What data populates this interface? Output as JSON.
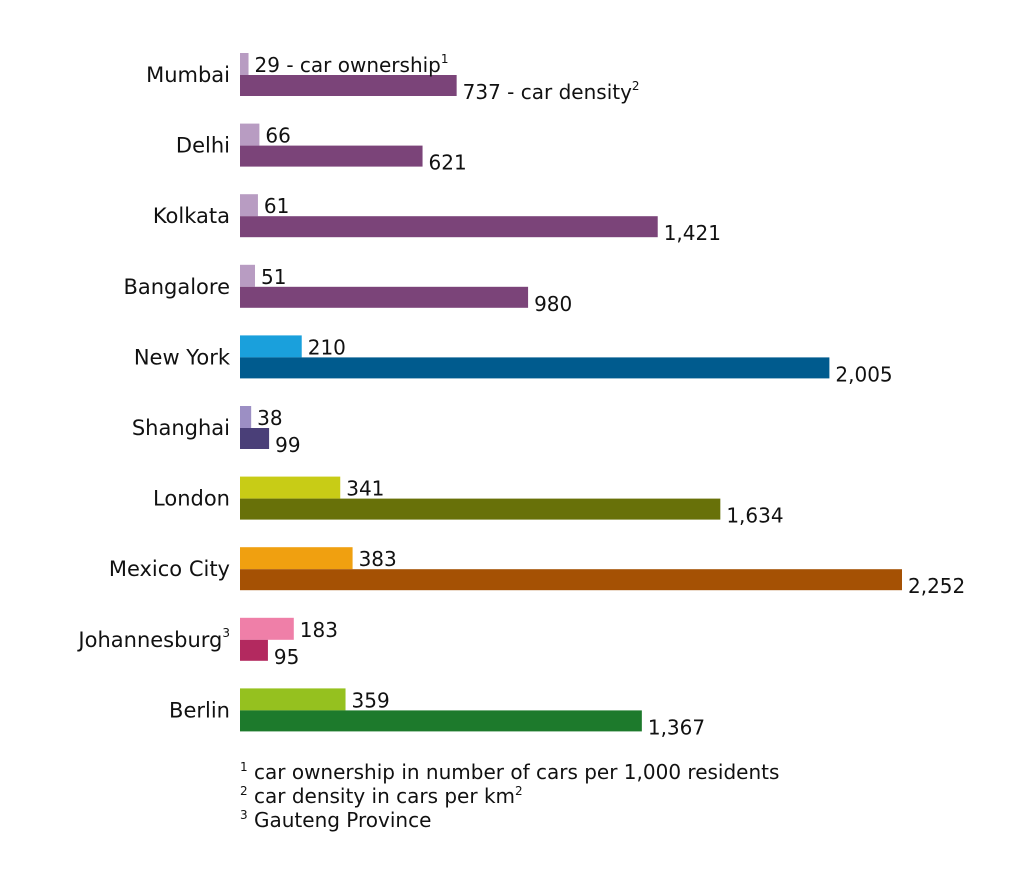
{
  "chart_data": {
    "type": "bar",
    "orientation": "horizontal",
    "series": [
      {
        "name": "car ownership",
        "label_suffix": " - car ownership",
        "footnote_ref": "1"
      },
      {
        "name": "car density",
        "label_suffix": " - car density",
        "footnote_ref": "2"
      }
    ],
    "categories": [
      {
        "name": "Mumbai",
        "ownership": 29,
        "ownership_label": "29",
        "density": 737,
        "density_label": "737",
        "light_color": "#b89cc2",
        "dark_color": "#7b4479",
        "footnote_ref": ""
      },
      {
        "name": "Delhi",
        "ownership": 66,
        "ownership_label": "66",
        "density": 621,
        "density_label": "621",
        "light_color": "#b89cc2",
        "dark_color": "#7b4479",
        "footnote_ref": ""
      },
      {
        "name": "Kolkata",
        "ownership": 61,
        "ownership_label": "61",
        "density": 1421,
        "density_label": "1,421",
        "light_color": "#b89cc2",
        "dark_color": "#7b4479",
        "footnote_ref": ""
      },
      {
        "name": "Bangalore",
        "ownership": 51,
        "ownership_label": "51",
        "density": 980,
        "density_label": "980",
        "light_color": "#b89cc2",
        "dark_color": "#7b4479",
        "footnote_ref": ""
      },
      {
        "name": "New York",
        "ownership": 210,
        "ownership_label": "210",
        "density": 2005,
        "density_label": "2,005",
        "light_color": "#1aa0dc",
        "dark_color": "#005b8e",
        "footnote_ref": ""
      },
      {
        "name": "Shanghai",
        "ownership": 38,
        "ownership_label": "38",
        "density": 99,
        "density_label": "99",
        "light_color": "#9c8fc4",
        "dark_color": "#4a3f78",
        "footnote_ref": ""
      },
      {
        "name": "London",
        "ownership": 341,
        "ownership_label": "341",
        "density": 1634,
        "density_label": "1,634",
        "light_color": "#c8cc16",
        "dark_color": "#687109",
        "footnote_ref": ""
      },
      {
        "name": "Mexico City",
        "ownership": 383,
        "ownership_label": "383",
        "density": 2252,
        "density_label": "2,252",
        "light_color": "#f0a010",
        "dark_color": "#a55104",
        "footnote_ref": ""
      },
      {
        "name": "Johannesburg",
        "ownership": 183,
        "ownership_label": "183",
        "density": 95,
        "density_label": "95",
        "light_color": "#ef7fa8",
        "dark_color": "#b3295f",
        "footnote_ref": "3"
      },
      {
        "name": "Berlin",
        "ownership": 359,
        "ownership_label": "359",
        "density": 1367,
        "density_label": "1,367",
        "light_color": "#95c11f",
        "dark_color": "#1d7a2c",
        "footnote_ref": ""
      }
    ],
    "xlim": [
      0,
      2252
    ],
    "grid": false,
    "legend": "inline-first-row",
    "footnotes": [
      {
        "ref": "1",
        "text": "car ownership in number of cars per 1,000 residents",
        "trailing_ref": ""
      },
      {
        "ref": "2",
        "text": "car density in cars per km",
        "trailing_ref": "2"
      },
      {
        "ref": "3",
        "text": "Gauteng Province",
        "trailing_ref": ""
      }
    ]
  }
}
